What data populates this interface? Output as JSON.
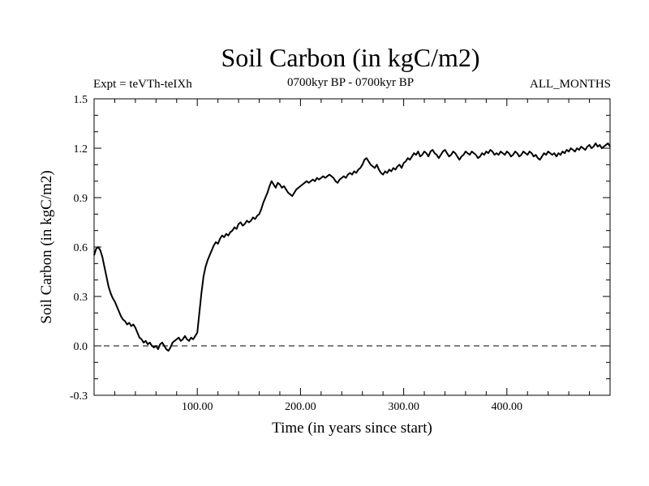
{
  "chart_data": {
    "type": "line",
    "title": "Soil Carbon (in kgC/m2)",
    "subtitle_left": "Expt = teVTh-teIXh",
    "subtitle_center": "0700kyr BP - 0700kyr BP",
    "subtitle_right": "ALL_MONTHS",
    "xlabel": "Time (in years since start)",
    "ylabel": "Soil Carbon (in kgC/m2)",
    "xlim": [
      0,
      500
    ],
    "ylim": [
      -0.3,
      1.5
    ],
    "x_ticks": [
      {
        "value": 100,
        "label": "100.00"
      },
      {
        "value": 200,
        "label": "200.00"
      },
      {
        "value": 300,
        "label": "300.00"
      },
      {
        "value": 400,
        "label": "400.00"
      }
    ],
    "y_ticks": [
      {
        "value": -0.3,
        "label": "-0.3"
      },
      {
        "value": 0.0,
        "label": "0.0"
      },
      {
        "value": 0.3,
        "label": "0.3"
      },
      {
        "value": 0.6,
        "label": "0.6"
      },
      {
        "value": 0.9,
        "label": "0.9"
      },
      {
        "value": 1.2,
        "label": "1.2"
      },
      {
        "value": 1.5,
        "label": "1.5"
      }
    ],
    "reference_line": {
      "y": 0.0,
      "style": "dashed"
    },
    "grid": false,
    "series": [
      {
        "color": "#000000",
        "points": [
          [
            0,
            0.55
          ],
          [
            2,
            0.59
          ],
          [
            4,
            0.6
          ],
          [
            6,
            0.58
          ],
          [
            8,
            0.54
          ],
          [
            10,
            0.48
          ],
          [
            12,
            0.42
          ],
          [
            14,
            0.36
          ],
          [
            16,
            0.32
          ],
          [
            18,
            0.29
          ],
          [
            20,
            0.27
          ],
          [
            22,
            0.24
          ],
          [
            24,
            0.21
          ],
          [
            26,
            0.18
          ],
          [
            28,
            0.16
          ],
          [
            30,
            0.15
          ],
          [
            32,
            0.13
          ],
          [
            34,
            0.14
          ],
          [
            36,
            0.12
          ],
          [
            38,
            0.13
          ],
          [
            40,
            0.11
          ],
          [
            42,
            0.08
          ],
          [
            44,
            0.05
          ],
          [
            46,
            0.04
          ],
          [
            48,
            0.02
          ],
          [
            50,
            0.03
          ],
          [
            52,
            0.01
          ],
          [
            54,
            0.02
          ],
          [
            56,
            0.0
          ],
          [
            58,
            -0.01
          ],
          [
            60,
            0.0
          ],
          [
            62,
            -0.02
          ],
          [
            64,
            0.01
          ],
          [
            66,
            0.02
          ],
          [
            68,
            0.0
          ],
          [
            70,
            -0.02
          ],
          [
            72,
            -0.03
          ],
          [
            74,
            -0.01
          ],
          [
            76,
            0.02
          ],
          [
            78,
            0.03
          ],
          [
            80,
            0.04
          ],
          [
            82,
            0.05
          ],
          [
            84,
            0.03
          ],
          [
            86,
            0.04
          ],
          [
            88,
            0.06
          ],
          [
            90,
            0.04
          ],
          [
            92,
            0.03
          ],
          [
            94,
            0.05
          ],
          [
            96,
            0.04
          ],
          [
            98,
            0.06
          ],
          [
            100,
            0.08
          ],
          [
            102,
            0.2
          ],
          [
            104,
            0.32
          ],
          [
            106,
            0.42
          ],
          [
            108,
            0.48
          ],
          [
            110,
            0.52
          ],
          [
            112,
            0.55
          ],
          [
            114,
            0.58
          ],
          [
            116,
            0.61
          ],
          [
            118,
            0.63
          ],
          [
            120,
            0.62
          ],
          [
            122,
            0.65
          ],
          [
            124,
            0.67
          ],
          [
            126,
            0.66
          ],
          [
            128,
            0.68
          ],
          [
            130,
            0.67
          ],
          [
            132,
            0.69
          ],
          [
            134,
            0.7
          ],
          [
            136,
            0.72
          ],
          [
            138,
            0.71
          ],
          [
            140,
            0.74
          ],
          [
            142,
            0.75
          ],
          [
            144,
            0.73
          ],
          [
            146,
            0.74
          ],
          [
            148,
            0.76
          ],
          [
            150,
            0.75
          ],
          [
            152,
            0.76
          ],
          [
            154,
            0.78
          ],
          [
            156,
            0.77
          ],
          [
            158,
            0.79
          ],
          [
            160,
            0.8
          ],
          [
            162,
            0.83
          ],
          [
            164,
            0.87
          ],
          [
            166,
            0.9
          ],
          [
            168,
            0.93
          ],
          [
            170,
            0.97
          ],
          [
            172,
            1.0
          ],
          [
            174,
            0.98
          ],
          [
            176,
            0.96
          ],
          [
            178,
            0.99
          ],
          [
            180,
            0.98
          ],
          [
            182,
            0.96
          ],
          [
            184,
            0.97
          ],
          [
            186,
            0.95
          ],
          [
            188,
            0.93
          ],
          [
            190,
            0.92
          ],
          [
            192,
            0.91
          ],
          [
            194,
            0.93
          ],
          [
            196,
            0.95
          ],
          [
            198,
            0.96
          ],
          [
            200,
            0.97
          ],
          [
            202,
            0.98
          ],
          [
            204,
            0.99
          ],
          [
            206,
            1.0
          ],
          [
            208,
            0.99
          ],
          [
            210,
            1.0
          ],
          [
            212,
            1.01
          ],
          [
            214,
            1.0
          ],
          [
            216,
            1.02
          ],
          [
            218,
            1.01
          ],
          [
            220,
            1.02
          ],
          [
            222,
            1.03
          ],
          [
            224,
            1.02
          ],
          [
            226,
            1.03
          ],
          [
            228,
            1.04
          ],
          [
            230,
            1.03
          ],
          [
            232,
            1.02
          ],
          [
            234,
            1.0
          ],
          [
            236,
            0.99
          ],
          [
            238,
            1.01
          ],
          [
            240,
            1.02
          ],
          [
            242,
            1.03
          ],
          [
            244,
            1.02
          ],
          [
            246,
            1.04
          ],
          [
            248,
            1.05
          ],
          [
            250,
            1.04
          ],
          [
            252,
            1.06
          ],
          [
            254,
            1.05
          ],
          [
            256,
            1.07
          ],
          [
            258,
            1.08
          ],
          [
            260,
            1.1
          ],
          [
            262,
            1.13
          ],
          [
            264,
            1.14
          ],
          [
            266,
            1.12
          ],
          [
            268,
            1.1
          ],
          [
            270,
            1.09
          ],
          [
            272,
            1.08
          ],
          [
            274,
            1.1
          ],
          [
            276,
            1.07
          ],
          [
            278,
            1.05
          ],
          [
            280,
            1.04
          ],
          [
            282,
            1.06
          ],
          [
            284,
            1.05
          ],
          [
            286,
            1.07
          ],
          [
            288,
            1.06
          ],
          [
            290,
            1.08
          ],
          [
            292,
            1.07
          ],
          [
            294,
            1.09
          ],
          [
            296,
            1.1
          ],
          [
            298,
            1.08
          ],
          [
            300,
            1.11
          ],
          [
            302,
            1.12
          ],
          [
            304,
            1.14
          ],
          [
            306,
            1.13
          ],
          [
            308,
            1.15
          ],
          [
            310,
            1.17
          ],
          [
            312,
            1.16
          ],
          [
            314,
            1.18
          ],
          [
            316,
            1.15
          ],
          [
            318,
            1.16
          ],
          [
            320,
            1.18
          ],
          [
            322,
            1.17
          ],
          [
            324,
            1.15
          ],
          [
            326,
            1.18
          ],
          [
            328,
            1.19
          ],
          [
            330,
            1.17
          ],
          [
            332,
            1.16
          ],
          [
            334,
            1.14
          ],
          [
            336,
            1.16
          ],
          [
            338,
            1.18
          ],
          [
            340,
            1.19
          ],
          [
            342,
            1.17
          ],
          [
            344,
            1.15
          ],
          [
            346,
            1.16
          ],
          [
            348,
            1.18
          ],
          [
            350,
            1.17
          ],
          [
            352,
            1.15
          ],
          [
            354,
            1.13
          ],
          [
            356,
            1.15
          ],
          [
            358,
            1.16
          ],
          [
            360,
            1.18
          ],
          [
            362,
            1.17
          ],
          [
            364,
            1.16
          ],
          [
            366,
            1.18
          ],
          [
            368,
            1.17
          ],
          [
            370,
            1.16
          ],
          [
            372,
            1.14
          ],
          [
            374,
            1.15
          ],
          [
            376,
            1.17
          ],
          [
            378,
            1.16
          ],
          [
            380,
            1.18
          ],
          [
            382,
            1.17
          ],
          [
            384,
            1.19
          ],
          [
            386,
            1.18
          ],
          [
            388,
            1.16
          ],
          [
            390,
            1.17
          ],
          [
            392,
            1.16
          ],
          [
            394,
            1.18
          ],
          [
            396,
            1.17
          ],
          [
            398,
            1.16
          ],
          [
            400,
            1.18
          ],
          [
            402,
            1.17
          ],
          [
            404,
            1.15
          ],
          [
            406,
            1.16
          ],
          [
            408,
            1.18
          ],
          [
            410,
            1.17
          ],
          [
            412,
            1.15
          ],
          [
            414,
            1.16
          ],
          [
            416,
            1.18
          ],
          [
            418,
            1.17
          ],
          [
            420,
            1.16
          ],
          [
            422,
            1.18
          ],
          [
            424,
            1.17
          ],
          [
            426,
            1.15
          ],
          [
            428,
            1.16
          ],
          [
            430,
            1.14
          ],
          [
            432,
            1.13
          ],
          [
            434,
            1.15
          ],
          [
            436,
            1.17
          ],
          [
            438,
            1.16
          ],
          [
            440,
            1.18
          ],
          [
            442,
            1.17
          ],
          [
            444,
            1.16
          ],
          [
            446,
            1.17
          ],
          [
            448,
            1.15
          ],
          [
            450,
            1.17
          ],
          [
            452,
            1.16
          ],
          [
            454,
            1.18
          ],
          [
            456,
            1.17
          ],
          [
            458,
            1.19
          ],
          [
            460,
            1.18
          ],
          [
            462,
            1.2
          ],
          [
            464,
            1.19
          ],
          [
            466,
            1.18
          ],
          [
            468,
            1.2
          ],
          [
            470,
            1.19
          ],
          [
            472,
            1.21
          ],
          [
            474,
            1.2
          ],
          [
            476,
            1.19
          ],
          [
            478,
            1.21
          ],
          [
            480,
            1.22
          ],
          [
            482,
            1.2
          ],
          [
            484,
            1.21
          ],
          [
            486,
            1.23
          ],
          [
            488,
            1.21
          ],
          [
            490,
            1.22
          ],
          [
            492,
            1.2
          ],
          [
            494,
            1.21
          ],
          [
            496,
            1.22
          ],
          [
            498,
            1.23
          ],
          [
            500,
            1.21
          ]
        ]
      }
    ]
  }
}
